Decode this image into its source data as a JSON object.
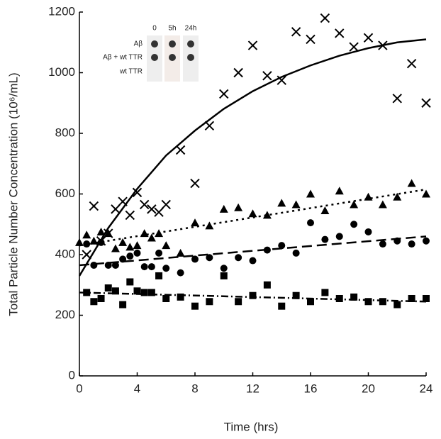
{
  "chart_data": {
    "type": "scatter",
    "x_label": "Time (hrs)",
    "y_label": "Total Particle Number Concentration (10⁶/mL)",
    "xlim": [
      0,
      24
    ],
    "xticks": [
      0,
      4,
      8,
      12,
      16,
      20,
      24
    ],
    "ylim": [
      0,
      1200
    ],
    "yticks": [
      0,
      200,
      400,
      600,
      800,
      1000,
      1200
    ],
    "color": "#000000",
    "series": [
      {
        "marker": "cross",
        "x": [
          0.5,
          1,
          1.5,
          2,
          2.5,
          3,
          3.5,
          4,
          4.5,
          5,
          5.5,
          6,
          7,
          8,
          9,
          10,
          11,
          12,
          13,
          14,
          15,
          16,
          17,
          18,
          19,
          20,
          21,
          22,
          23,
          24
        ],
        "values": [
          400,
          560,
          445,
          470,
          550,
          575,
          530,
          605,
          565,
          550,
          540,
          565,
          745,
          635,
          825,
          930,
          1000,
          1090,
          990,
          975,
          1135,
          1110,
          1180,
          1130,
          1085,
          1115,
          1090,
          915,
          1030,
          900
        ]
      },
      {
        "marker": "triangle",
        "x": [
          0,
          0.5,
          1,
          1.5,
          2,
          2.5,
          3,
          3.5,
          4,
          4.5,
          5,
          5.5,
          6,
          7,
          8,
          9,
          10,
          11,
          12,
          13,
          14,
          15,
          16,
          17,
          18,
          19,
          20,
          21,
          22,
          23,
          24
        ],
        "values": [
          440,
          465,
          445,
          475,
          470,
          420,
          440,
          425,
          430,
          470,
          455,
          470,
          430,
          405,
          505,
          495,
          550,
          555,
          535,
          530,
          570,
          565,
          600,
          545,
          610,
          565,
          590,
          565,
          590,
          635,
          600
        ]
      },
      {
        "marker": "circle",
        "x": [
          0.5,
          1,
          1.5,
          2,
          2.5,
          3,
          3.5,
          4,
          4.5,
          5,
          5.5,
          6,
          7,
          8,
          9,
          10,
          11,
          12,
          13,
          14,
          15,
          16,
          17,
          18,
          19,
          20,
          21,
          22,
          23,
          24
        ],
        "values": [
          435,
          365,
          440,
          365,
          365,
          385,
          395,
          405,
          360,
          360,
          405,
          355,
          340,
          385,
          390,
          355,
          390,
          380,
          415,
          430,
          405,
          505,
          450,
          460,
          500,
          475,
          435,
          445,
          435,
          445
        ]
      },
      {
        "marker": "square",
        "x": [
          0.5,
          1,
          1.5,
          2,
          2.5,
          3,
          3.5,
          4,
          4.5,
          5,
          5.5,
          6,
          7,
          8,
          9,
          10,
          11,
          12,
          13,
          14,
          15,
          16,
          17,
          18,
          19,
          20,
          21,
          22,
          23,
          24
        ],
        "values": [
          275,
          245,
          255,
          290,
          280,
          235,
          310,
          280,
          275,
          275,
          330,
          255,
          260,
          230,
          245,
          330,
          245,
          265,
          300,
          230,
          265,
          245,
          275,
          255,
          260,
          245,
          245,
          235,
          255,
          255
        ]
      },
      {
        "line_style": "solid",
        "x": [
          0,
          2,
          4,
          6,
          8,
          10,
          12,
          14,
          16,
          18,
          20,
          22,
          24
        ],
        "values": [
          330,
          488,
          617,
          727,
          809,
          881,
          939,
          986,
          1024,
          1056,
          1081,
          1100,
          1110
        ]
      },
      {
        "line_style": "dotted",
        "x": [
          0,
          24
        ],
        "values": [
          430,
          615
        ]
      },
      {
        "line_style": "dashed",
        "x": [
          0,
          24
        ],
        "values": [
          365,
          460
        ]
      },
      {
        "line_style": "dashdot",
        "x": [
          0,
          24
        ],
        "values": [
          275,
          245
        ]
      }
    ],
    "inset": {
      "columns": [
        "0",
        "5h",
        "24h"
      ],
      "rows": [
        "Aβ",
        "Aβ + wt TTR",
        "wt TTR"
      ]
    }
  }
}
